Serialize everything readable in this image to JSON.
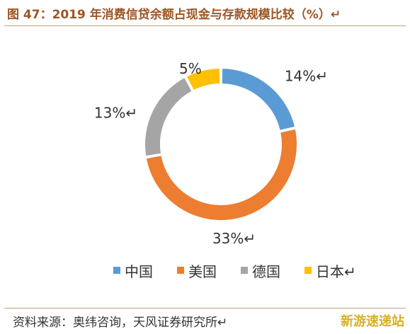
{
  "title": "图 47：2019 年消费信贷余额占现金与存款规模比较（%）↵",
  "source": "资料来源：奥纬咨询，天风证券研究所↵",
  "watermark": "新游速递站",
  "chart_data": {
    "type": "pie",
    "donut": true,
    "unit": "%",
    "slices": [
      {
        "name": "中国",
        "value": 14,
        "label": "14%↵",
        "color": "#5b9bd5"
      },
      {
        "name": "美国",
        "value": 33,
        "label": "33%↵",
        "color": "#ed7d31"
      },
      {
        "name": "德国",
        "value": 13,
        "label": "13%↵",
        "color": "#a5a5a5"
      },
      {
        "name": "日本↵",
        "value": 5,
        "label": "5%",
        "color": "#ffc000"
      }
    ],
    "legend_position": "bottom"
  }
}
